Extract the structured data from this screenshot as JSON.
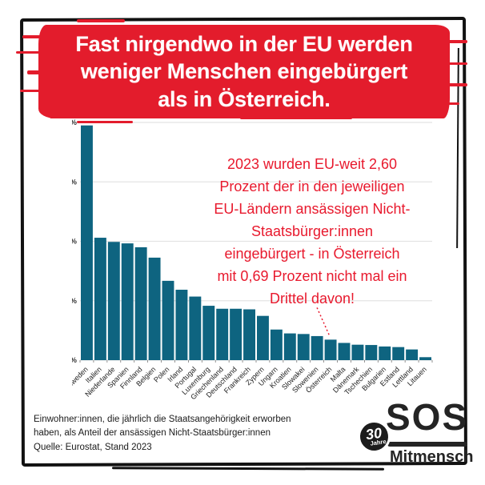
{
  "title": {
    "text": "Fast nirgendwo in der EU werden\nweniger Menschen eingebürgert\nals in Österreich."
  },
  "chart_data": {
    "type": "bar",
    "title": "",
    "xlabel": "",
    "ylabel": "",
    "ylim": [
      0,
      8
    ],
    "yticks": [
      "0%",
      "2%",
      "4%",
      "6%",
      "8%"
    ],
    "grid": true,
    "bar_color": "#0e6480",
    "categories": [
      "Schweden",
      "Italien",
      "Niederlande",
      "Spanien",
      "Finnland",
      "Belgien",
      "Polen",
      "Irland",
      "Portugal",
      "Luxemburg",
      "Griechenland",
      "Deutschland",
      "Frankreich",
      "Zypern",
      "Ungarn",
      "Kroatien",
      "Slowakei",
      "Slowenien",
      "Österreich",
      "Malta",
      "Dänemark",
      "Tschechien",
      "Bulgarien",
      "Estland",
      "Lettland",
      "Litauen"
    ],
    "values": [
      7.9,
      4.12,
      3.98,
      3.93,
      3.8,
      3.45,
      2.67,
      2.37,
      2.14,
      1.83,
      1.73,
      1.73,
      1.71,
      1.49,
      1.03,
      0.9,
      0.88,
      0.81,
      0.69,
      0.58,
      0.52,
      0.51,
      0.46,
      0.44,
      0.36,
      0.1
    ],
    "annotation": {
      "text": "2023 wurden EU-weit 2,60\nProzent der in den jeweiligen\nEU-Ländern ansässigen Nicht-\nStaatsbürger:innen\neingebürgert - in Österreich\nmit 0,69 Prozent nicht mal ein\nDrittel davon!",
      "color": "#e8192d",
      "points_to": "Österreich"
    }
  },
  "footer": {
    "note": "Einwohner:innen, die jährlich die Staatsangehörigkeit erworben\nhaben, als Anteil der ansässigen Nicht-Staatsbürger:innen",
    "source": "Quelle: Eurostat, Stand 2023"
  },
  "logo": {
    "sos": "SOS",
    "brand": "Mitmensch",
    "badge_number": "30",
    "badge_word": "Jahre"
  },
  "colors": {
    "banner_red": "#e31c2c",
    "annotation_red": "#e8192d",
    "bar_teal": "#0e6480",
    "frame_black": "#121212"
  }
}
